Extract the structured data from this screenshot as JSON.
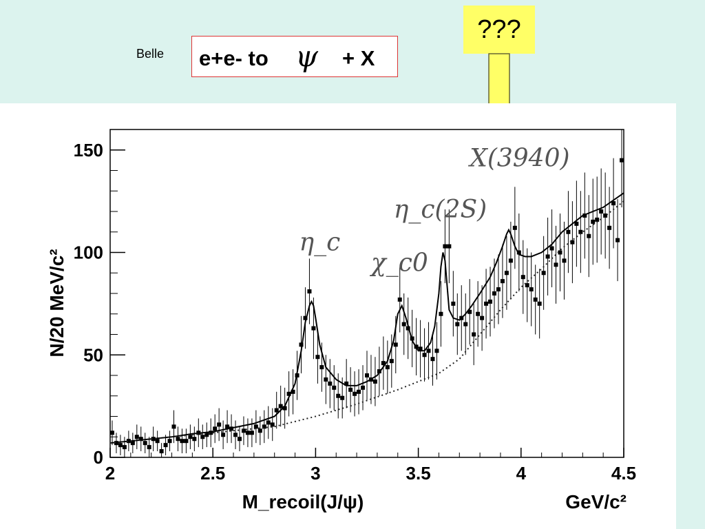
{
  "slide": {
    "label": "Belle",
    "title_prefix": "e+e- to",
    "title_symbol": "ψ",
    "title_suffix": "+ X",
    "callout": "???"
  },
  "chart_data": {
    "type": "scatter",
    "title": "",
    "xlabel": "M_recoil(J/ψ)",
    "xunit": "GeV/c²",
    "ylabel": "N/20 MeV/c²",
    "xlim": [
      2.0,
      4.5
    ],
    "ylim": [
      0,
      160
    ],
    "xticks": [
      2,
      2.5,
      3,
      3.5,
      4,
      4.5
    ],
    "xtick_labels": [
      "2",
      "2.5",
      "3",
      "3.5",
      "4",
      "4.5"
    ],
    "yticks": [
      0,
      50,
      100,
      150
    ],
    "ytick_labels": [
      "0",
      "50",
      "100",
      "150"
    ],
    "grid": false,
    "annotations": [
      {
        "text": "η_c",
        "x": 2.92,
        "y": 101
      },
      {
        "text": "χ_c0",
        "x": 3.27,
        "y": 91
      },
      {
        "text": "η_c(2S)",
        "x": 3.38,
        "y": 117
      },
      {
        "text": "X(3940)",
        "x": 3.75,
        "y": 142
      }
    ],
    "series": [
      {
        "style": "points with error bars",
        "x": [
          2.01,
          2.03,
          2.05,
          2.07,
          2.09,
          2.11,
          2.13,
          2.15,
          2.17,
          2.19,
          2.21,
          2.23,
          2.25,
          2.27,
          2.29,
          2.31,
          2.33,
          2.35,
          2.37,
          2.39,
          2.41,
          2.43,
          2.45,
          2.47,
          2.49,
          2.51,
          2.53,
          2.55,
          2.57,
          2.59,
          2.61,
          2.63,
          2.65,
          2.67,
          2.69,
          2.71,
          2.73,
          2.75,
          2.77,
          2.79,
          2.81,
          2.83,
          2.85,
          2.87,
          2.89,
          2.91,
          2.93,
          2.95,
          2.97,
          2.99,
          3.01,
          3.03,
          3.05,
          3.07,
          3.09,
          3.11,
          3.13,
          3.15,
          3.17,
          3.19,
          3.21,
          3.23,
          3.25,
          3.27,
          3.29,
          3.31,
          3.33,
          3.35,
          3.37,
          3.39,
          3.41,
          3.43,
          3.45,
          3.47,
          3.49,
          3.51,
          3.53,
          3.55,
          3.57,
          3.59,
          3.61,
          3.63,
          3.65,
          3.67,
          3.69,
          3.71,
          3.73,
          3.75,
          3.77,
          3.79,
          3.81,
          3.83,
          3.85,
          3.87,
          3.89,
          3.91,
          3.93,
          3.95,
          3.97,
          3.99,
          4.01,
          4.03,
          4.05,
          4.07,
          4.09,
          4.11,
          4.13,
          4.15,
          4.17,
          4.19,
          4.21,
          4.23,
          4.25,
          4.27,
          4.29,
          4.31,
          4.33,
          4.35,
          4.37,
          4.39,
          4.41,
          4.43,
          4.45,
          4.47,
          4.49
        ],
        "y": [
          12,
          7,
          6,
          5,
          8,
          7,
          10,
          9,
          7,
          5,
          9,
          8,
          3,
          6,
          8,
          15,
          9,
          8,
          8,
          10,
          9,
          12,
          10,
          11,
          12,
          14,
          16,
          11,
          15,
          14,
          11,
          9,
          13,
          12,
          12,
          15,
          13,
          15,
          17,
          16,
          23,
          25,
          24,
          31,
          32,
          40,
          55,
          68,
          81,
          63,
          49,
          44,
          38,
          36,
          34,
          30,
          29,
          36,
          33,
          31,
          32,
          34,
          40,
          38,
          37,
          42,
          46,
          44,
          47,
          55,
          77,
          65,
          63,
          58,
          54,
          53,
          50,
          52,
          48,
          52,
          70,
          103,
          103,
          75,
          65,
          68,
          65,
          71,
          60,
          70,
          68,
          75,
          76,
          80,
          82,
          86,
          90,
          96,
          112,
          100,
          88,
          84,
          82,
          77,
          75,
          90,
          98,
          102,
          94,
          100,
          96,
          110,
          105,
          114,
          110,
          118,
          108,
          115,
          116,
          120,
          118,
          112,
          124,
          106,
          145
        ],
        "err": [
          6,
          5,
          5,
          5,
          5,
          5,
          6,
          6,
          5,
          5,
          6,
          5,
          4,
          5,
          5,
          8,
          6,
          6,
          6,
          6,
          6,
          7,
          6,
          6,
          7,
          7,
          8,
          7,
          8,
          7,
          7,
          6,
          7,
          7,
          7,
          8,
          7,
          8,
          8,
          8,
          9,
          10,
          10,
          11,
          11,
          12,
          14,
          15,
          16,
          15,
          13,
          12,
          12,
          12,
          11,
          11,
          10,
          12,
          11,
          11,
          11,
          11,
          12,
          12,
          12,
          12,
          13,
          13,
          13,
          14,
          16,
          15,
          15,
          14,
          14,
          14,
          13,
          14,
          13,
          14,
          16,
          18,
          18,
          16,
          15,
          16,
          15,
          16,
          15,
          16,
          16,
          17,
          17,
          17,
          17,
          18,
          18,
          19,
          20,
          19,
          18,
          18,
          18,
          17,
          17,
          18,
          19,
          19,
          19,
          19,
          19,
          20,
          20,
          21,
          20,
          21,
          20,
          21,
          21,
          21,
          21,
          20,
          22,
          20,
          23
        ]
      },
      {
        "name": "",
        "style": "solid line (total fit)",
        "x": [
          2.0,
          2.1,
          2.2,
          2.3,
          2.4,
          2.5,
          2.6,
          2.7,
          2.8,
          2.85,
          2.9,
          2.93,
          2.95,
          2.97,
          2.98,
          2.99,
          3.0,
          3.02,
          3.05,
          3.1,
          3.15,
          3.2,
          3.25,
          3.3,
          3.35,
          3.38,
          3.4,
          3.42,
          3.44,
          3.47,
          3.5,
          3.53,
          3.56,
          3.58,
          3.6,
          3.61,
          3.62,
          3.63,
          3.64,
          3.65,
          3.67,
          3.7,
          3.73,
          3.76,
          3.8,
          3.85,
          3.88,
          3.91,
          3.93,
          3.94,
          3.95,
          3.97,
          3.99,
          4.02,
          4.05,
          4.1,
          4.15,
          4.2,
          4.3,
          4.4,
          4.5
        ],
        "y": [
          7,
          8,
          9,
          10,
          11.5,
          12.5,
          14.5,
          16.5,
          20,
          25,
          36,
          52,
          66,
          74,
          76,
          74,
          68,
          55,
          44,
          38,
          35,
          35,
          37,
          40,
          47,
          57,
          70,
          74,
          68,
          57,
          52,
          52,
          56,
          64,
          80,
          93,
          100,
          96,
          84,
          72,
          68,
          67,
          70,
          74,
          80,
          88,
          95,
          103,
          109,
          111,
          109,
          103,
          99,
          98,
          98,
          100,
          104,
          110,
          118,
          122,
          129
        ]
      },
      {
        "name": "",
        "style": "dotted line (background)",
        "x": [
          2.0,
          2.2,
          2.4,
          2.6,
          2.8,
          3.0,
          3.2,
          3.4,
          3.6,
          3.7,
          3.8,
          3.9,
          4.0,
          4.1,
          4.2,
          4.3,
          4.4,
          4.5
        ],
        "y": [
          7,
          9,
          11,
          13,
          15,
          20,
          26,
          33,
          41,
          48,
          60,
          72,
          83,
          92,
          102,
          110,
          117,
          125
        ]
      }
    ]
  }
}
